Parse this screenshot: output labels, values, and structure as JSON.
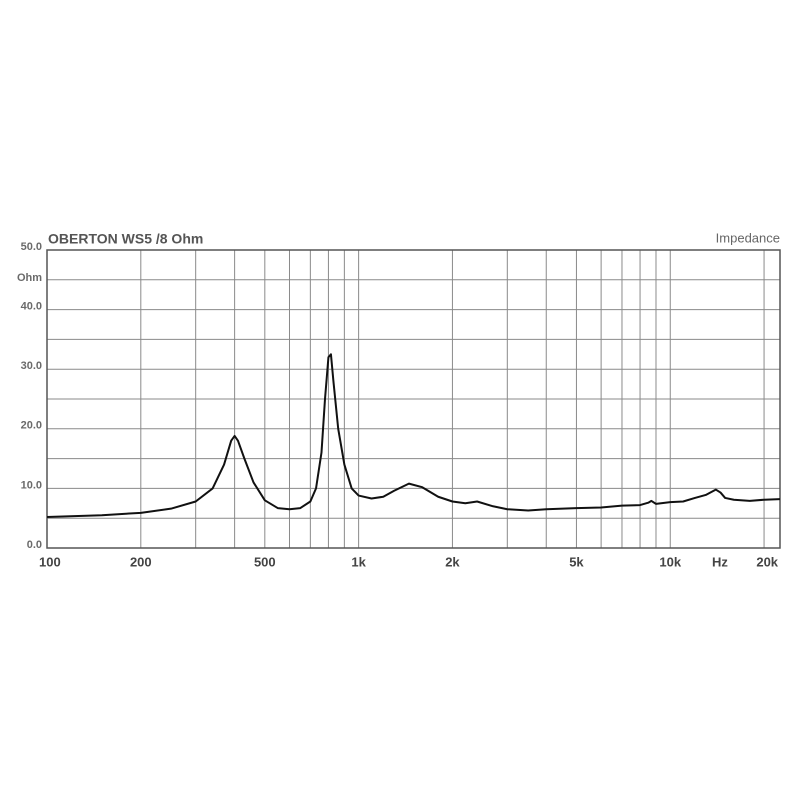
{
  "chart_data": {
    "type": "line",
    "title": "OBERTON WS5 /8 Ohm",
    "subtitle": "Impedance",
    "y_unit": "Ohm",
    "x_unit": "Hz",
    "log_x": true,
    "grid": true,
    "xlim": [
      100,
      22500
    ],
    "ylim": [
      0,
      50
    ],
    "xticks": [
      100,
      200,
      500,
      {
        "value": 1000,
        "label": "1k"
      },
      {
        "value": 2000,
        "label": "2k"
      },
      {
        "value": 5000,
        "label": "5k"
      },
      {
        "value": 10000,
        "label": "10k"
      },
      {
        "value": 20000,
        "label": "20k"
      }
    ],
    "xgrid": [
      200,
      300,
      400,
      500,
      600,
      700,
      800,
      900,
      1000,
      2000,
      3000,
      4000,
      5000,
      6000,
      7000,
      8000,
      9000,
      10000,
      20000
    ],
    "yticks": [
      {
        "value": 0,
        "label": "0.0"
      },
      {
        "value": 10,
        "label": "10.0"
      },
      {
        "value": 20,
        "label": "20.0"
      },
      {
        "value": 30,
        "label": "30.0"
      },
      {
        "value": 40,
        "label": "40.0"
      },
      {
        "value": 50,
        "label": "50.0"
      }
    ],
    "ygrid": [
      5,
      10,
      15,
      20,
      25,
      30,
      35,
      40,
      45
    ],
    "x": [
      100,
      150,
      200,
      250,
      300,
      340,
      370,
      390,
      400,
      410,
      430,
      460,
      500,
      550,
      600,
      650,
      700,
      730,
      760,
      780,
      800,
      815,
      830,
      860,
      900,
      950,
      1000,
      1100,
      1200,
      1300,
      1450,
      1600,
      1800,
      2000,
      2200,
      2400,
      2700,
      3000,
      3500,
      4000,
      5000,
      6000,
      7000,
      8000,
      8500,
      8700,
      9000,
      10000,
      11000,
      12000,
      13000,
      14000,
      14500,
      15000,
      16000,
      18000,
      20000,
      22500
    ],
    "series": [
      {
        "name": "Impedance",
        "color": "#111111",
        "values": [
          5.2,
          5.5,
          5.9,
          6.6,
          7.8,
          10,
          14,
          18,
          18.8,
          18,
          15,
          11,
          8,
          6.7,
          6.5,
          6.7,
          7.8,
          10,
          16,
          25,
          32,
          32.5,
          28,
          20,
          14,
          10,
          8.8,
          8.3,
          8.6,
          9.6,
          10.8,
          10.2,
          8.6,
          7.8,
          7.5,
          7.8,
          7,
          6.5,
          6.3,
          6.5,
          6.7,
          6.8,
          7.1,
          7.2,
          7.6,
          7.9,
          7.4,
          7.7,
          7.8,
          8.4,
          8.9,
          9.8,
          9.3,
          8.4,
          8.1,
          7.9,
          8.1,
          8.2
        ]
      }
    ]
  }
}
